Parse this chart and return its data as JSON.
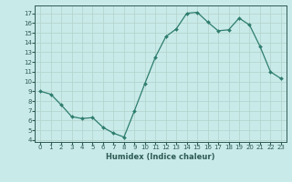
{
  "x": [
    0,
    1,
    2,
    3,
    4,
    5,
    6,
    7,
    8,
    9,
    10,
    11,
    12,
    13,
    14,
    15,
    16,
    17,
    18,
    19,
    20,
    21,
    22,
    23
  ],
  "y": [
    9.0,
    8.7,
    7.6,
    6.4,
    6.2,
    6.3,
    5.3,
    4.7,
    4.3,
    7.0,
    9.8,
    12.5,
    14.6,
    15.4,
    17.0,
    17.1,
    16.1,
    15.2,
    15.3,
    16.5,
    15.8,
    13.6,
    11.0,
    10.3
  ],
  "line_color": "#2e7d6e",
  "marker_color": "#2e7d6e",
  "bg_color": "#c8eae8",
  "grid_color": "#b5d5d0",
  "xlabel": "Humidex (Indice chaleur)",
  "ylabel_ticks": [
    4,
    5,
    6,
    7,
    8,
    9,
    10,
    11,
    12,
    13,
    14,
    15,
    16,
    17
  ],
  "xlim": [
    -0.5,
    23.5
  ],
  "ylim": [
    3.8,
    17.8
  ],
  "font_color": "#2e5a54",
  "tick_fontsize": 5.0,
  "xlabel_fontsize": 6.0
}
